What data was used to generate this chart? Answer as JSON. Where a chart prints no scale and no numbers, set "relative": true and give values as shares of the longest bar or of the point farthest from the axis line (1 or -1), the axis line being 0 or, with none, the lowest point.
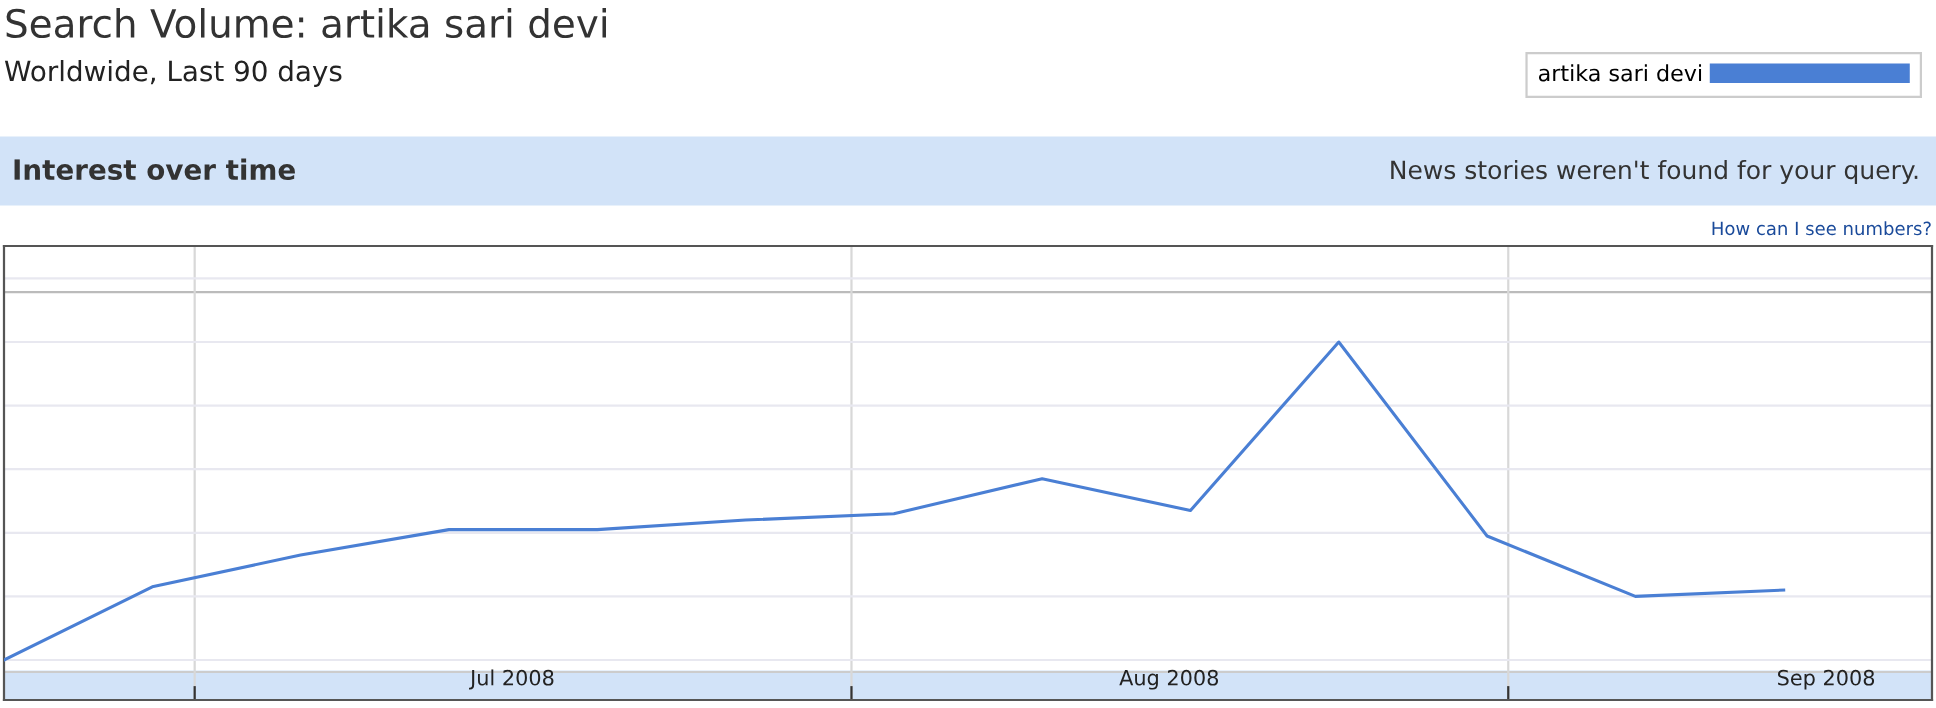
{
  "chart_data": {
    "type": "line",
    "title": "Search Volume: artika sari devi",
    "subtitle": "Worldwide, Last 90 days",
    "annotations": [
      "Interest over time",
      "News stories weren't found for your query.",
      "How can I see numbers?"
    ],
    "x": [
      "2008-06-22",
      "2008-06-29",
      "2008-07-06",
      "2008-07-13",
      "2008-07-20",
      "2008-07-27",
      "2008-08-03",
      "2008-08-10",
      "2008-08-17",
      "2008-08-24",
      "2008-08-31",
      "2008-09-07",
      "2008-09-14"
    ],
    "series": [
      {
        "name": "artika sari devi",
        "color": "#4a7fd4",
        "values": [
          0,
          0.23,
          0.33,
          0.41,
          0.41,
          0.44,
          0.46,
          0.57,
          0.47,
          1,
          0.39,
          0.2,
          0.22
        ]
      }
    ],
    "relative": true,
    "xlim": [
      "2008-06-22",
      "2008-09-21"
    ],
    "xticks": [
      {
        "value": "2008-07-01",
        "label": null
      },
      {
        "value": "2008-07-16",
        "label": "Jul 2008"
      },
      {
        "value": "2008-08-01",
        "label": null
      },
      {
        "value": "2008-08-16",
        "label": "Aug 2008"
      },
      {
        "value": "2008-09-01",
        "label": null
      },
      {
        "value": "2008-09-16",
        "label": "Sep 2008"
      }
    ],
    "grid": true,
    "legend": "top right",
    "tick_labels": "x",
    "marker": "none",
    "line_style": "solid"
  }
}
